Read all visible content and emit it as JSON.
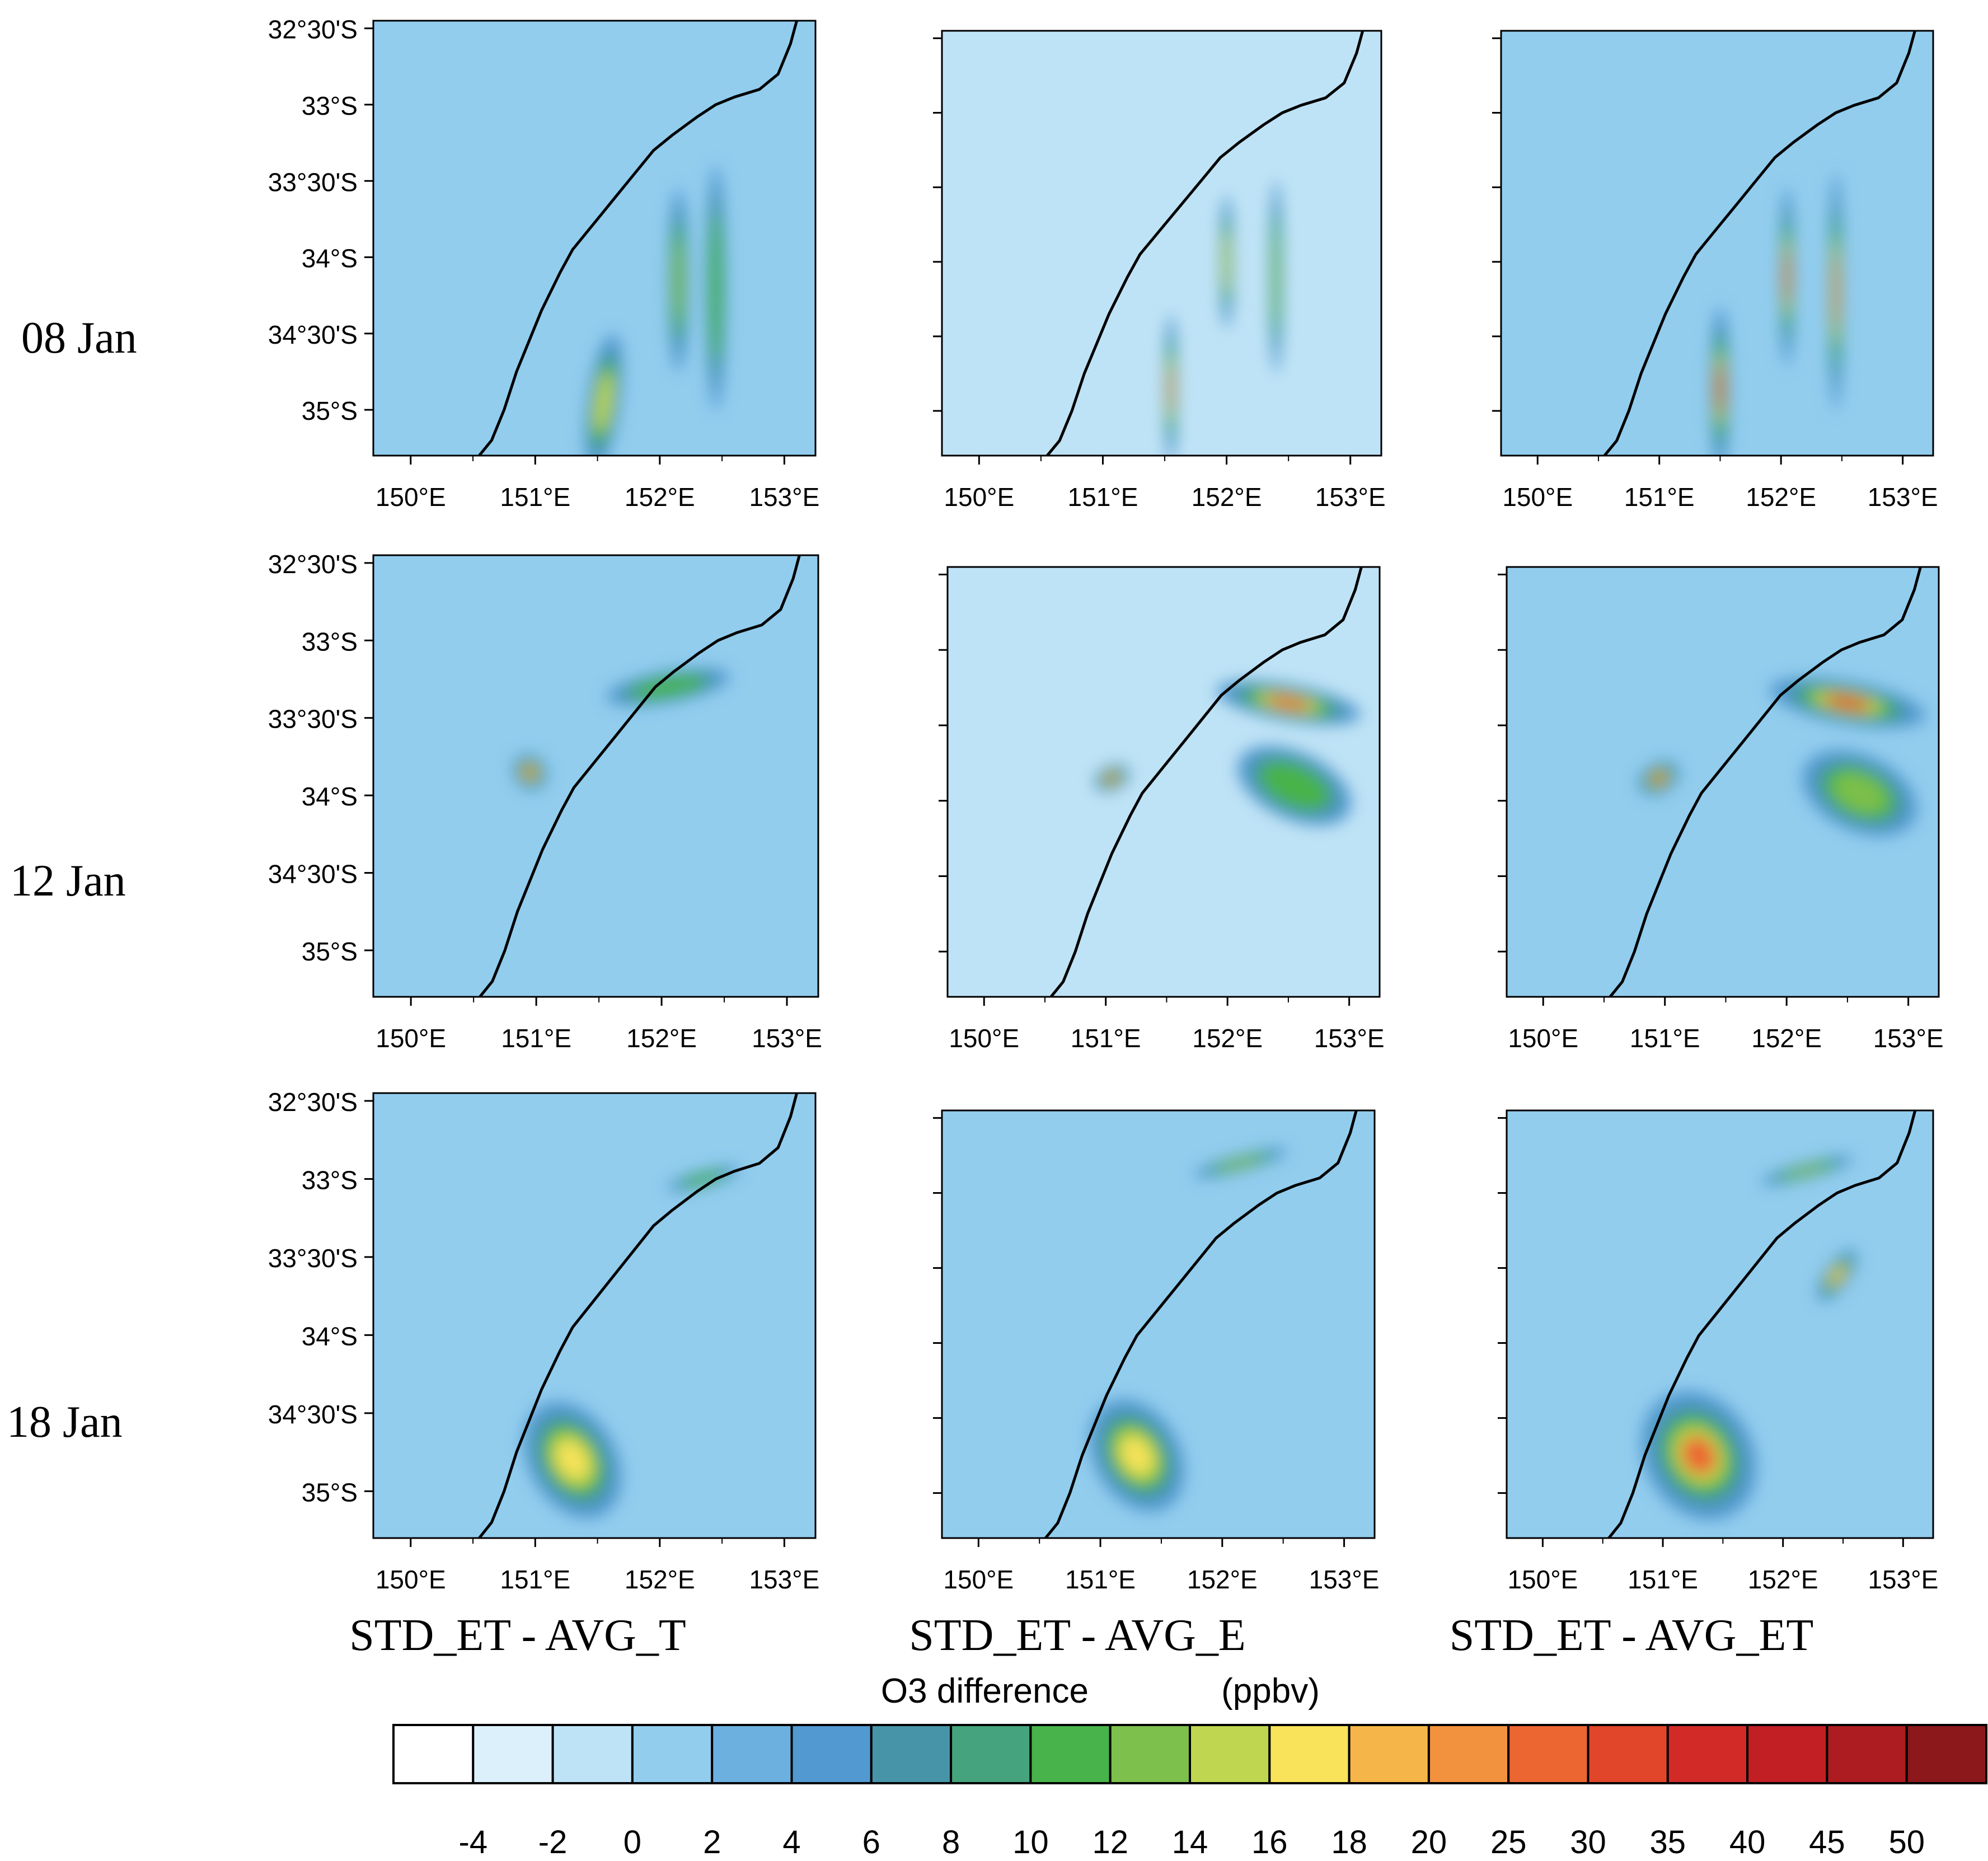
{
  "rows": [
    {
      "label": "08 Jan",
      "panels": [
        {
          "column": "STD_ET - AVG_T",
          "background": "#92cdee",
          "features": [
            {
              "lon": 151.55,
              "lat": -34.95,
              "rlon": 0.13,
              "rlat": 0.45,
              "rot": 8,
              "level": 14
            },
            {
              "lon": 152.15,
              "lat": -34.15,
              "rlon": 0.08,
              "rlat": 0.6,
              "rot": 0,
              "level": 12
            },
            {
              "lon": 152.45,
              "lat": -34.2,
              "rlon": 0.08,
              "rlat": 0.8,
              "rot": 0,
              "level": 10
            }
          ]
        },
        {
          "column": "STD_ET - AVG_E",
          "background": "#bfe3f6",
          "features": [
            {
              "lon": 151.55,
              "lat": -34.85,
              "rlon": 0.05,
              "rlat": 0.5,
              "rot": 0,
              "level": 20
            },
            {
              "lon": 152.0,
              "lat": -34.0,
              "rlon": 0.05,
              "rlat": 0.45,
              "rot": 0,
              "level": 14
            },
            {
              "lon": 152.4,
              "lat": -34.1,
              "rlon": 0.05,
              "rlat": 0.65,
              "rot": 0,
              "level": 12
            }
          ]
        },
        {
          "column": "STD_ET - AVG_ET",
          "background": "#92cdee",
          "features": [
            {
              "lon": 151.5,
              "lat": -34.85,
              "rlon": 0.08,
              "rlat": 0.55,
              "rot": 0,
              "level": 30
            },
            {
              "lon": 152.05,
              "lat": -34.1,
              "rlon": 0.06,
              "rlat": 0.6,
              "rot": 0,
              "level": 25
            },
            {
              "lon": 152.45,
              "lat": -34.2,
              "rlon": 0.06,
              "rlat": 0.8,
              "rot": 0,
              "level": 20
            }
          ]
        }
      ]
    },
    {
      "label": "12 Jan",
      "panels": [
        {
          "column": "STD_ET - AVG_T",
          "background": "#92cdee",
          "features": [
            {
              "lon": 150.95,
              "lat": -33.85,
              "rlon": 0.13,
              "rlat": 0.12,
              "rot": -35,
              "level": 25
            },
            {
              "lon": 152.05,
              "lat": -33.3,
              "rlon": 0.5,
              "rlat": 0.1,
              "rot": -10,
              "level": 10
            }
          ]
        },
        {
          "column": "STD_ET - AVG_E",
          "background": "#bfe3f6",
          "features": [
            {
              "lon": 151.05,
              "lat": -33.85,
              "rlon": 0.15,
              "rlat": 0.08,
              "rot": -25,
              "level": 30
            },
            {
              "lon": 152.5,
              "lat": -33.35,
              "rlon": 0.6,
              "rlat": 0.12,
              "rot": 10,
              "level": 25
            },
            {
              "lon": 152.55,
              "lat": -33.9,
              "rlon": 0.5,
              "rlat": 0.22,
              "rot": 25,
              "level": 10
            }
          ]
        },
        {
          "column": "STD_ET - AVG_ET",
          "background": "#92cdee",
          "features": [
            {
              "lon": 150.95,
              "lat": -33.85,
              "rlon": 0.18,
              "rlat": 0.1,
              "rot": -30,
              "level": 30
            },
            {
              "lon": 152.5,
              "lat": -33.35,
              "rlon": 0.65,
              "rlat": 0.14,
              "rot": 10,
              "level": 30
            },
            {
              "lon": 152.6,
              "lat": -33.95,
              "rlon": 0.5,
              "rlat": 0.25,
              "rot": 25,
              "level": 12
            }
          ]
        }
      ]
    },
    {
      "label": "18 Jan",
      "panels": [
        {
          "column": "STD_ET - AVG_T",
          "background": "#92cdee",
          "features": [
            {
              "lon": 151.3,
              "lat": -34.8,
              "rlon": 0.35,
              "rlat": 0.4,
              "rot": -30,
              "level": 16
            },
            {
              "lon": 152.35,
              "lat": -33.0,
              "rlon": 0.3,
              "rlat": 0.05,
              "rot": -15,
              "level": 10
            }
          ]
        },
        {
          "column": "STD_ET - AVG_E",
          "background": "#92cdee",
          "features": [
            {
              "lon": 151.3,
              "lat": -34.75,
              "rlon": 0.35,
              "rlat": 0.4,
              "rot": -30,
              "level": 16
            },
            {
              "lon": 152.15,
              "lat": -32.8,
              "rlon": 0.4,
              "rlat": 0.05,
              "rot": -15,
              "level": 12
            }
          ]
        },
        {
          "column": "STD_ET - AVG_ET",
          "background": "#92cdee",
          "features": [
            {
              "lon": 151.3,
              "lat": -34.75,
              "rlon": 0.45,
              "rlat": 0.45,
              "rot": -30,
              "level": 25
            },
            {
              "lon": 152.45,
              "lat": -33.55,
              "rlon": 0.25,
              "rlat": 0.08,
              "rot": -55,
              "level": 18
            },
            {
              "lon": 152.2,
              "lat": -32.85,
              "rlon": 0.4,
              "rlat": 0.05,
              "rot": -15,
              "level": 12
            }
          ]
        }
      ]
    }
  ],
  "columns": [
    "STD_ET - AVG_T",
    "STD_ET - AVG_E",
    "STD_ET - AVG_ET"
  ],
  "lon_ticks": [
    "150°E",
    "151°E",
    "152°E",
    "153°E"
  ],
  "lat_ticks": [
    "32°30'S",
    "33°S",
    "33°30'S",
    "34°S",
    "34°30'S",
    "35°S"
  ],
  "lon_range": [
    149.7,
    153.25
  ],
  "lat_range": [
    -35.3,
    -32.45
  ],
  "colorbar": {
    "title": "O3 difference",
    "units": "(ppbv)",
    "labels": [
      "-4",
      "-2",
      "0",
      "2",
      "4",
      "6",
      "8",
      "10",
      "12",
      "14",
      "16",
      "18",
      "20",
      "25",
      "30",
      "35",
      "40",
      "45",
      "50"
    ],
    "levels": [
      -4,
      -2,
      0,
      2,
      4,
      6,
      8,
      10,
      12,
      14,
      16,
      18,
      20,
      25,
      30,
      35,
      40,
      45,
      50
    ],
    "colors": [
      "#ffffff",
      "#dcf0fb",
      "#bfe3f6",
      "#92cdee",
      "#6cb0e0",
      "#5299d1",
      "#4794a8",
      "#45a37d",
      "#47b34a",
      "#7dc04b",
      "#bfd650",
      "#f8e35a",
      "#f5b548",
      "#f2923e",
      "#ec6631",
      "#e1462a",
      "#d22b27",
      "#c11f24",
      "#ad1c20",
      "#8c181b"
    ]
  },
  "coastline": [
    [
      153.1,
      -32.45
    ],
    [
      153.05,
      -32.6
    ],
    [
      153.0,
      -32.7
    ],
    [
      152.95,
      -32.8
    ],
    [
      152.8,
      -32.9
    ],
    [
      152.6,
      -32.95
    ],
    [
      152.45,
      -33.0
    ],
    [
      152.3,
      -33.08
    ],
    [
      152.1,
      -33.2
    ],
    [
      151.95,
      -33.3
    ],
    [
      151.8,
      -33.45
    ],
    [
      151.65,
      -33.6
    ],
    [
      151.5,
      -33.75
    ],
    [
      151.3,
      -33.95
    ],
    [
      151.2,
      -34.1
    ],
    [
      151.05,
      -34.35
    ],
    [
      150.95,
      -34.55
    ],
    [
      150.85,
      -34.75
    ],
    [
      150.75,
      -35.0
    ],
    [
      150.65,
      -35.2
    ],
    [
      150.55,
      -35.3
    ]
  ]
}
